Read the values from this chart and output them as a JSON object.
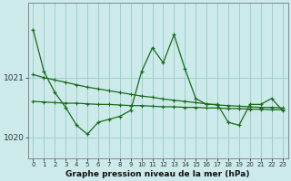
{
  "hours": [
    0,
    1,
    2,
    3,
    4,
    5,
    6,
    7,
    8,
    9,
    10,
    11,
    12,
    13,
    14,
    15,
    16,
    17,
    18,
    19,
    20,
    21,
    22,
    23
  ],
  "pressure": [
    1021.8,
    1021.1,
    1020.75,
    1020.5,
    1020.2,
    1020.05,
    1020.25,
    1020.3,
    1020.35,
    1020.45,
    1021.1,
    1021.5,
    1021.25,
    1021.72,
    1021.15,
    1020.65,
    1020.55,
    1020.55,
    1020.25,
    1020.2,
    1020.55,
    1020.55,
    1020.65,
    1020.45
  ],
  "upper_trend": [
    1021.05,
    1021.0,
    1020.96,
    1020.92,
    1020.88,
    1020.84,
    1020.81,
    1020.78,
    1020.75,
    1020.72,
    1020.69,
    1020.67,
    1020.64,
    1020.62,
    1020.6,
    1020.58,
    1020.56,
    1020.54,
    1020.53,
    1020.52,
    1020.51,
    1020.5,
    1020.5,
    1020.49
  ],
  "lower_trend": [
    1020.6,
    1020.59,
    1020.58,
    1020.57,
    1020.57,
    1020.56,
    1020.55,
    1020.55,
    1020.54,
    1020.53,
    1020.53,
    1020.52,
    1020.51,
    1020.51,
    1020.5,
    1020.5,
    1020.49,
    1020.49,
    1020.48,
    1020.48,
    1020.47,
    1020.47,
    1020.46,
    1020.46
  ],
  "color": "#1a6b1a",
  "bg_color": "#cceaea",
  "grid_color": "#9ecece",
  "ylim_min": 1019.65,
  "ylim_max": 1022.25,
  "yticks": [
    1020,
    1021
  ],
  "xlabel": "Graphe pression niveau de la mer (hPa)",
  "xlabel_fontsize": 6.5,
  "xlabel_fontweight": "bold"
}
